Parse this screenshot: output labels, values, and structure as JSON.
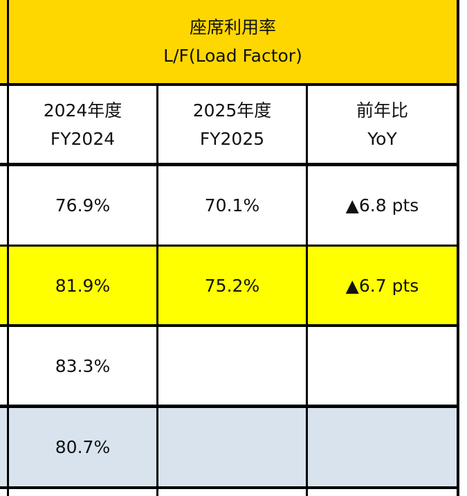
{
  "table": {
    "header": {
      "line1": "座席利用率",
      "line2": "L/F(Load Factor)"
    },
    "columns": [
      {
        "line1": "2024年度",
        "line2": "FY2024"
      },
      {
        "line1": "2025年度",
        "line2": "FY2025"
      },
      {
        "line1": "前年比",
        "line2": "YoY"
      }
    ],
    "rows": [
      {
        "fy2024": "76.9%",
        "fy2025": "70.1%",
        "yoy": "▲6.8 pts",
        "style": "white"
      },
      {
        "fy2024": "81.9%",
        "fy2025": "75.2%",
        "yoy": "▲6.7 pts",
        "style": "yellow"
      },
      {
        "fy2024": "83.3%",
        "fy2025": "",
        "yoy": "",
        "style": "white"
      },
      {
        "fy2024": "80.7%",
        "fy2025": "",
        "yoy": "",
        "style": "blue"
      }
    ],
    "colors": {
      "header_bg": "#ffd700",
      "highlight_row_bg": "#ffff00",
      "summary_row_bg": "#d8e3ee",
      "grid": "#000000"
    }
  }
}
